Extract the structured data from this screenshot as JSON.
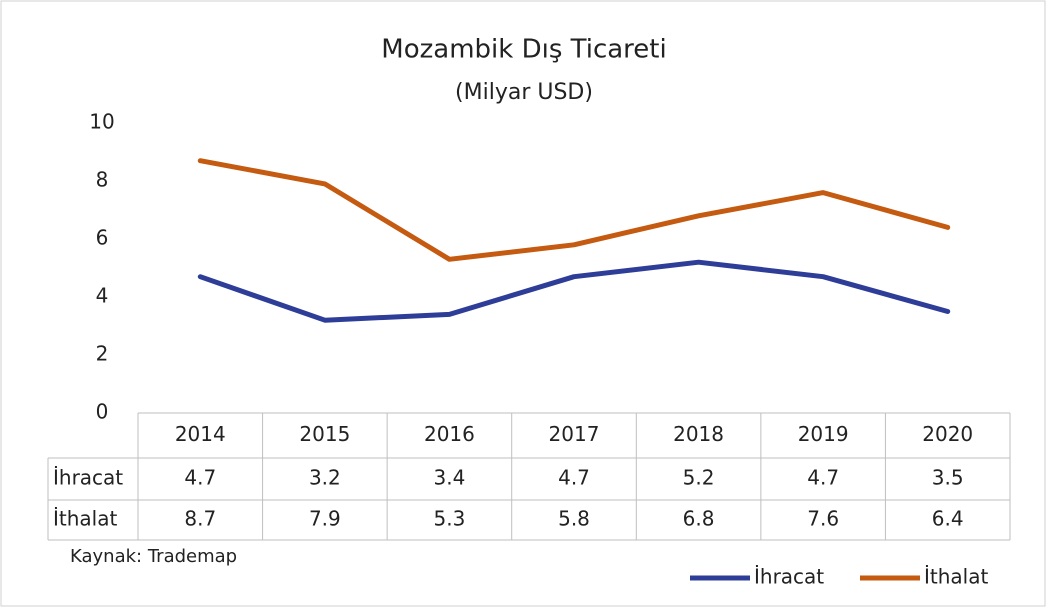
{
  "chart_data": {
    "type": "line",
    "title": "Mozambik Dış Ticareti",
    "subtitle": "(Milyar USD)",
    "categories": [
      "2014",
      "2015",
      "2016",
      "2017",
      "2018",
      "2019",
      "2020"
    ],
    "series": [
      {
        "name": "İhracat",
        "color": "#2e3d98",
        "values": [
          4.7,
          3.2,
          3.4,
          4.7,
          5.2,
          4.7,
          3.5
        ]
      },
      {
        "name": "İthalat",
        "color": "#c55a11",
        "values": [
          8.7,
          7.9,
          5.3,
          5.8,
          6.8,
          7.6,
          6.4
        ]
      }
    ],
    "ylim": [
      0,
      10
    ],
    "yticks": [
      0,
      2,
      4,
      6,
      8,
      10
    ],
    "grid": false,
    "legend": "bottom-right",
    "source": "Kaynak: Trademap"
  }
}
